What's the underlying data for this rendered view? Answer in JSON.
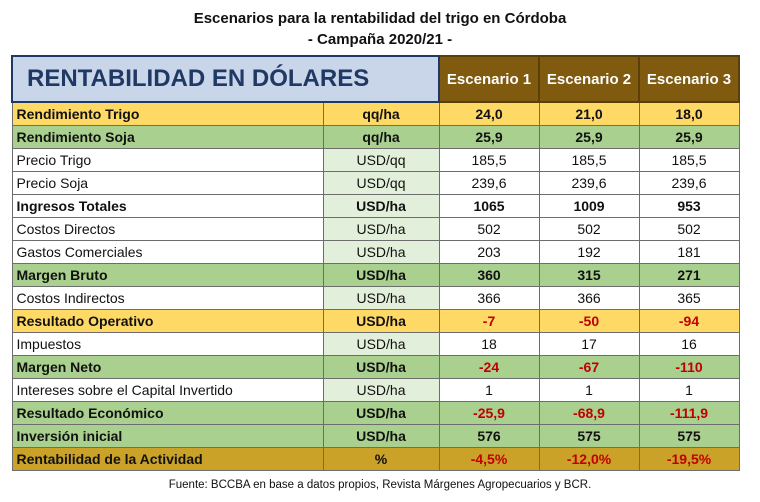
{
  "title_line1": "Escenarios para la rentabilidad del trigo en Córdoba",
  "title_line2": "- Campaña 2020/21 -",
  "table": {
    "header": "RENTABILIDAD EN DÓLARES",
    "scenarios": [
      "Escenario 1",
      "Escenario 2",
      "Escenario 3"
    ],
    "rows": [
      {
        "label": "Rendimiento Trigo",
        "unit": "qq/ha",
        "values": [
          "24,0",
          "21,0",
          "18,0"
        ],
        "style": "yellow",
        "negative": false
      },
      {
        "label": "Rendimiento Soja",
        "unit": "qq/ha",
        "values": [
          "25,9",
          "25,9",
          "25,9"
        ],
        "style": "green",
        "negative": false
      },
      {
        "label": "Precio Trigo",
        "unit": "USD/qq",
        "values": [
          "185,5",
          "185,5",
          "185,5"
        ],
        "style": "white",
        "negative": false
      },
      {
        "label": "Precio Soja",
        "unit": "USD/qq",
        "values": [
          "239,6",
          "239,6",
          "239,6"
        ],
        "style": "white",
        "negative": false
      },
      {
        "label": "Ingresos Totales",
        "unit": "USD/ha",
        "values": [
          "1065",
          "1009",
          "953"
        ],
        "style": "boldwhite",
        "negative": false
      },
      {
        "label": "Costos Directos",
        "unit": "USD/ha",
        "values": [
          "502",
          "502",
          "502"
        ],
        "style": "white",
        "negative": false
      },
      {
        "label": "Gastos Comerciales",
        "unit": "USD/ha",
        "values": [
          "203",
          "192",
          "181"
        ],
        "style": "white",
        "negative": false
      },
      {
        "label": "Margen Bruto",
        "unit": "USD/ha",
        "values": [
          "360",
          "315",
          "271"
        ],
        "style": "green",
        "negative": false
      },
      {
        "label": "Costos Indirectos",
        "unit": "USD/ha",
        "values": [
          "366",
          "366",
          "365"
        ],
        "style": "white",
        "negative": false
      },
      {
        "label": "Resultado Operativo",
        "unit": "USD/ha",
        "values": [
          "-7",
          "-50",
          "-94"
        ],
        "style": "yellow",
        "negative": true
      },
      {
        "label": "Impuestos",
        "unit": "USD/ha",
        "values": [
          "18",
          "17",
          "16"
        ],
        "style": "white",
        "negative": false
      },
      {
        "label": "Margen Neto",
        "unit": "USD/ha",
        "values": [
          "-24",
          "-67",
          "-110"
        ],
        "style": "green",
        "negative": true
      },
      {
        "label": "Intereses sobre el Capital Invertido",
        "unit": "USD/ha",
        "values": [
          "1",
          "1",
          "1"
        ],
        "style": "white",
        "negative": false
      },
      {
        "label": "Resultado Económico",
        "unit": "USD/ha",
        "values": [
          "-25,9",
          "-68,9",
          "-111,9"
        ],
        "style": "green",
        "negative": true
      },
      {
        "label": "Inversión inicial",
        "unit": "USD/ha",
        "values": [
          "576",
          "575",
          "575"
        ],
        "style": "green",
        "negative": false
      },
      {
        "label": "Rentabilidad de la Actividad",
        "unit": "%",
        "values": [
          "-4,5%",
          "-12,0%",
          "-19,5%"
        ],
        "style": "gold",
        "negative": true
      }
    ]
  },
  "source": "Fuente: BCCBA en base a datos propios, Revista Márgenes Agropecuarios y BCR.",
  "colors": {
    "header_bg": "#c9d6ea",
    "header_text": "#1f3864",
    "scenario_bg": "#7f5a0f",
    "yellow_row": "#ffd966",
    "green_row": "#a9d08e",
    "gold_row": "#c9a227",
    "negative_text": "#c00000"
  }
}
